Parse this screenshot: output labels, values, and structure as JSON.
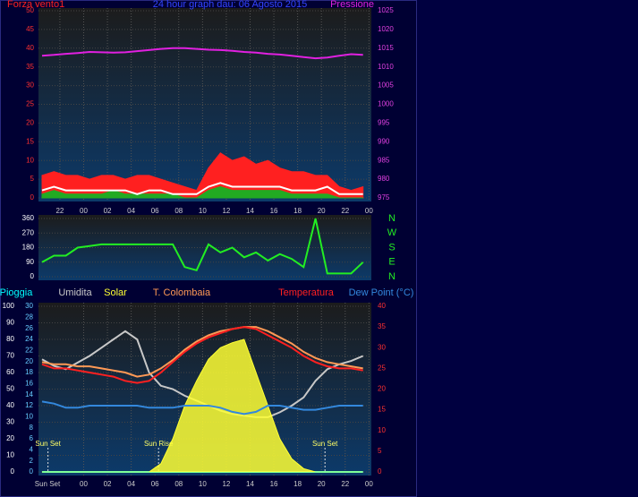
{
  "chart_data": [
    {
      "type": "line",
      "title": "24 hour graph dau: 06 Agosto 2015",
      "y_label": "Forza vento1",
      "y2_label": "Pressione",
      "x": [
        -1.5,
        -0.5,
        0.5,
        1.5,
        2.5,
        3.5,
        4.5,
        5.5,
        6.5,
        7.5,
        8.5,
        9.5,
        10.5,
        11.5,
        12.5,
        13.5,
        14.5,
        15.5,
        16.5,
        17.5,
        18.5,
        19.5,
        20.5,
        21.5,
        22.5,
        23.5,
        24.5,
        25.5
      ],
      "xlim": [
        -1.8,
        26.2
      ],
      "xticks": [
        {
          "value": 0,
          "label": "22"
        },
        {
          "value": 2,
          "label": "00"
        },
        {
          "value": 4,
          "label": "02"
        },
        {
          "value": 6,
          "label": "04"
        },
        {
          "value": 8,
          "label": "06"
        },
        {
          "value": 10,
          "label": "08"
        },
        {
          "value": 12,
          "label": "10"
        },
        {
          "value": 14,
          "label": "12"
        },
        {
          "value": 16,
          "label": "14"
        },
        {
          "value": 18,
          "label": "16"
        },
        {
          "value": 20,
          "label": "18"
        },
        {
          "value": 22,
          "label": "20"
        },
        {
          "value": 24,
          "label": "22"
        },
        {
          "value": 26,
          "label": "00"
        }
      ],
      "ylim": [
        0,
        50
      ],
      "yticks": [
        0,
        5,
        10,
        15,
        20,
        25,
        30,
        35,
        40,
        45,
        50
      ],
      "y2lim": [
        975,
        1025
      ],
      "y2ticks": [
        975,
        980,
        985,
        990,
        995,
        1000,
        1005,
        1010,
        1015,
        1020,
        1025
      ],
      "series": [
        {
          "color": "#ff2020",
          "style": "area",
          "values": [
            6,
            7,
            6,
            6,
            5,
            6,
            6,
            5,
            6,
            6,
            5,
            4,
            3,
            2,
            8,
            12,
            10,
            11,
            9,
            10,
            8,
            7,
            7,
            6,
            6,
            3,
            2,
            3
          ]
        },
        {
          "color": "#22aa22",
          "style": "area",
          "values": [
            1,
            2,
            1,
            1,
            1,
            1,
            2,
            1,
            1,
            1,
            1,
            1,
            0,
            0,
            2,
            3,
            2,
            2,
            2,
            2,
            2,
            1,
            1,
            1,
            1,
            0,
            0,
            0
          ]
        },
        {
          "color": "#ffffff",
          "style": "line",
          "values": [
            2,
            3,
            2,
            2,
            2,
            2,
            2,
            2,
            1,
            2,
            2,
            1,
            1,
            1,
            3,
            4,
            3,
            3,
            3,
            3,
            3,
            2,
            2,
            2,
            3,
            1,
            1,
            1
          ]
        },
        {
          "color": "#e020e0",
          "style": "line",
          "axis": "y2",
          "values": [
            1013,
            1013.2,
            1013.5,
            1013.7,
            1014,
            1013.9,
            1013.8,
            1013.9,
            1014.2,
            1014.5,
            1014.8,
            1015,
            1015,
            1014.8,
            1014.6,
            1014.5,
            1014.3,
            1014,
            1013.8,
            1013.5,
            1013.3,
            1013,
            1012.6,
            1012.3,
            1012.5,
            1013,
            1013.4,
            1013.2
          ]
        }
      ]
    },
    {
      "type": "line",
      "x": [
        -1.5,
        -0.5,
        0.5,
        1.5,
        2.5,
        3.5,
        4.5,
        5.5,
        6.5,
        7.5,
        8.5,
        9.5,
        10.5,
        11.5,
        12.5,
        13.5,
        14.5,
        15.5,
        16.5,
        17.5,
        18.5,
        19.5,
        20.5,
        21.5,
        22.5,
        23.5,
        24.5,
        25.5
      ],
      "xlim": [
        -1.8,
        26.2
      ],
      "ylim": [
        0,
        360
      ],
      "yticks": [
        0,
        90,
        180,
        270,
        360
      ],
      "y2ticks": [
        {
          "value": 360,
          "label": "N"
        },
        {
          "value": 270,
          "label": "W"
        },
        {
          "value": 180,
          "label": "S"
        },
        {
          "value": 90,
          "label": "E"
        },
        {
          "value": 0,
          "label": "N"
        }
      ],
      "series": [
        {
          "color": "#22ee22",
          "style": "line",
          "values": [
            90,
            130,
            130,
            180,
            190,
            200,
            200,
            200,
            200,
            200,
            200,
            200,
            60,
            40,
            200,
            150,
            180,
            120,
            150,
            100,
            140,
            110,
            60,
            360,
            20,
            20,
            20,
            90
          ]
        }
      ]
    },
    {
      "type": "line",
      "x": [
        -1.5,
        -0.5,
        0.5,
        1.5,
        2.5,
        3.5,
        4.5,
        5.5,
        6.5,
        7.5,
        8.5,
        9.5,
        10.5,
        11.5,
        12.5,
        13.5,
        14.5,
        15.5,
        16.5,
        17.5,
        18.5,
        19.5,
        20.5,
        21.5,
        22.5,
        23.5,
        24.5,
        25.5
      ],
      "xlim": [
        -1.8,
        26.2
      ],
      "xticks": [
        {
          "value": 2,
          "label": "00"
        },
        {
          "value": 4,
          "label": "02"
        },
        {
          "value": 6,
          "label": "04"
        },
        {
          "value": 8,
          "label": "06"
        },
        {
          "value": 10,
          "label": "08"
        },
        {
          "value": 12,
          "label": "10"
        },
        {
          "value": 14,
          "label": "12"
        },
        {
          "value": 16,
          "label": "14"
        },
        {
          "value": 18,
          "label": "16"
        },
        {
          "value": 20,
          "label": "18"
        },
        {
          "value": 22,
          "label": "20"
        },
        {
          "value": 24,
          "label": "22"
        },
        {
          "value": 26,
          "label": "00"
        }
      ],
      "x_start_label": "Sun Set",
      "ylim": [
        0,
        100
      ],
      "yticks": [
        0,
        10,
        20,
        30,
        40,
        50,
        60,
        70,
        80,
        90,
        100
      ],
      "y3lim": [
        0,
        30
      ],
      "y3ticks": [
        0,
        2,
        4,
        6,
        8,
        10,
        12,
        14,
        16,
        18,
        20,
        22,
        24,
        26,
        28,
        30
      ],
      "y2lim": [
        0,
        40
      ],
      "y2ticks": [
        0,
        5,
        10,
        15,
        20,
        25,
        30,
        35,
        40
      ],
      "annotations": [
        {
          "x": -1,
          "text": "Sun Set"
        },
        {
          "x": 8.3,
          "text": "Sun Rise"
        },
        {
          "x": 22.3,
          "text": "Sun Set"
        }
      ],
      "series": [
        {
          "name": "Pioggia",
          "color": "#00ffff",
          "style": "line",
          "axis": "y3",
          "values": [
            0,
            0,
            0,
            0,
            0,
            0,
            0,
            0,
            0,
            0,
            0,
            0,
            0,
            0,
            0,
            0,
            0,
            0,
            0,
            0,
            0,
            0,
            0,
            0,
            0,
            0,
            0,
            0
          ]
        },
        {
          "name": "Umidita",
          "color": "#c8c8c8",
          "style": "line",
          "values": [
            68,
            64,
            62,
            66,
            70,
            75,
            80,
            85,
            80,
            60,
            52,
            50,
            46,
            43,
            40,
            37,
            35,
            34,
            33,
            33,
            36,
            40,
            45,
            55,
            62,
            65,
            67,
            70
          ]
        },
        {
          "name": "Solar",
          "color": "#ffff33",
          "style": "area",
          "values": [
            0,
            0,
            0,
            0,
            0,
            0,
            0,
            0,
            0,
            0,
            5,
            20,
            40,
            55,
            68,
            75,
            78,
            80,
            60,
            40,
            20,
            8,
            2,
            0,
            0,
            0,
            0,
            0
          ]
        },
        {
          "name": "T. Colombaia",
          "color": "#ff9955",
          "style": "line",
          "axis": "y2",
          "values": [
            26.5,
            26,
            26,
            25.5,
            25.5,
            25,
            24.5,
            24,
            23,
            23.5,
            25,
            27,
            29.5,
            31.5,
            33,
            34,
            34.5,
            35,
            35,
            34,
            32.5,
            31,
            29,
            27.5,
            26.5,
            26,
            25.5,
            25
          ]
        },
        {
          "name": "Temperatura",
          "color": "#ff2020",
          "style": "line",
          "axis": "y2",
          "values": [
            26,
            25,
            25,
            24.5,
            24,
            23.5,
            23,
            22,
            21.5,
            22,
            24,
            26.5,
            29,
            31,
            32.5,
            33.5,
            34.5,
            35,
            34.5,
            33,
            31.5,
            30,
            28,
            26.5,
            25.5,
            25,
            25,
            24.5
          ]
        },
        {
          "name": "Dew Point (°C)",
          "color": "#3388dd",
          "style": "line",
          "axis": "y2",
          "values": [
            17,
            16.5,
            15.5,
            15.5,
            16,
            16,
            16,
            16,
            16,
            15.5,
            15.5,
            15.5,
            16,
            16,
            16,
            15.5,
            14.5,
            14,
            14.5,
            16,
            16,
            15.5,
            15,
            15,
            15.5,
            16,
            16,
            16
          ]
        }
      ]
    }
  ]
}
